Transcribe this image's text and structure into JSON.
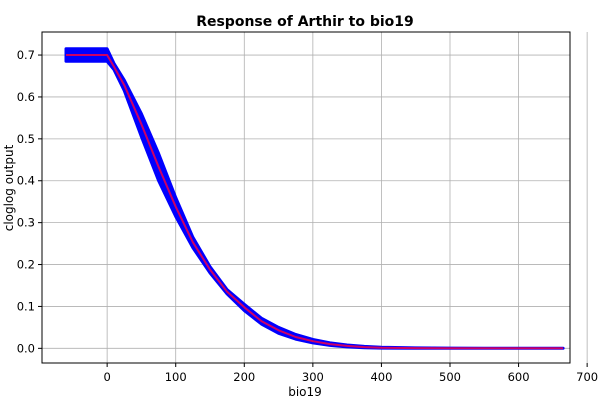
{
  "chart_data": {
    "type": "line",
    "title": "Response of Arthir to bio19",
    "xlabel": "bio19",
    "ylabel": "cloglog output",
    "xlim": [
      -95,
      675
    ],
    "ylim": [
      -0.035,
      0.755
    ],
    "xticks": [
      0,
      100,
      200,
      300,
      400,
      500,
      600,
      700
    ],
    "yticks": [
      0.0,
      0.1,
      0.2,
      0.3,
      0.4,
      0.5,
      0.6,
      0.7
    ],
    "xtick_labels": [
      "0",
      "100",
      "200",
      "300",
      "400",
      "500",
      "600",
      "700"
    ],
    "ytick_labels": [
      "0.0",
      "0.1",
      "0.2",
      "0.3",
      "0.4",
      "0.5",
      "0.6",
      "0.7"
    ],
    "grid": true,
    "series": [
      {
        "role": "band",
        "color": "#0000ff",
        "x": [
          -60,
          0,
          10,
          25,
          50,
          75,
          100,
          125,
          150,
          175,
          200,
          225,
          250,
          275,
          300,
          325,
          350,
          375,
          400,
          450,
          500,
          550,
          600,
          665
        ],
        "upper": [
          0.715,
          0.715,
          0.68,
          0.64,
          0.56,
          0.465,
          0.36,
          0.265,
          0.195,
          0.14,
          0.105,
          0.072,
          0.05,
          0.033,
          0.021,
          0.013,
          0.008,
          0.0045,
          0.0025,
          0.001,
          0.0005,
          0.0002,
          0.0001,
          0.0001
        ],
        "lower": [
          0.685,
          0.685,
          0.665,
          0.615,
          0.505,
          0.4,
          0.315,
          0.24,
          0.18,
          0.13,
          0.09,
          0.058,
          0.036,
          0.022,
          0.013,
          0.007,
          0.0035,
          0.0015,
          0.0005,
          0.0,
          0.0,
          0.0,
          0.0,
          0.0
        ]
      },
      {
        "role": "mean",
        "color": "#cc0066",
        "x": [
          -60,
          0,
          10,
          25,
          50,
          75,
          100,
          125,
          150,
          175,
          200,
          225,
          250,
          275,
          300,
          325,
          350,
          375,
          400,
          450,
          500,
          550,
          600,
          665
        ],
        "y": [
          0.7,
          0.7,
          0.672,
          0.628,
          0.535,
          0.433,
          0.338,
          0.253,
          0.188,
          0.135,
          0.098,
          0.065,
          0.043,
          0.027,
          0.017,
          0.01,
          0.0058,
          0.003,
          0.0015,
          0.0005,
          0.0002,
          0.0001,
          0.0,
          0.0
        ]
      }
    ]
  }
}
